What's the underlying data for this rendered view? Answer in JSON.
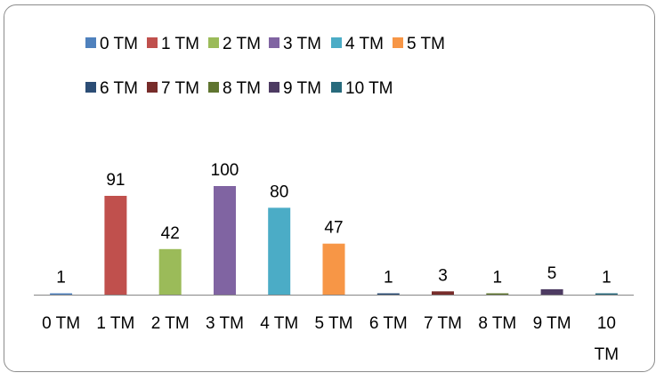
{
  "chart_data": {
    "type": "bar",
    "title": "",
    "xlabel": "",
    "ylabel": "",
    "ylim": [
      0,
      100
    ],
    "grid": false,
    "legend_position": "top",
    "categories": [
      "0 TM",
      "1 TM",
      "2 TM",
      "3 TM",
      "4 TM",
      "5 TM",
      "6 TM",
      "7 TM",
      "8 TM",
      "9 TM",
      "10 TM"
    ],
    "tick_labels": [
      [
        "0 TM"
      ],
      [
        "1 TM"
      ],
      [
        "2 TM"
      ],
      [
        "3 TM"
      ],
      [
        "4 TM"
      ],
      [
        "5 TM"
      ],
      [
        "6 TM"
      ],
      [
        "7 TM"
      ],
      [
        "8 TM"
      ],
      [
        "9 TM"
      ],
      [
        "10",
        "TM"
      ]
    ],
    "series": [
      {
        "name": "0 TM",
        "values": [
          1,
          null,
          null,
          null,
          null,
          null,
          null,
          null,
          null,
          null,
          null
        ],
        "color": "#4F81BD"
      },
      {
        "name": "1 TM",
        "values": [
          null,
          91,
          null,
          null,
          null,
          null,
          null,
          null,
          null,
          null,
          null
        ],
        "color": "#C0504D"
      },
      {
        "name": "2 TM",
        "values": [
          null,
          null,
          42,
          null,
          null,
          null,
          null,
          null,
          null,
          null,
          null
        ],
        "color": "#9BBB59"
      },
      {
        "name": "3 TM",
        "values": [
          null,
          null,
          null,
          100,
          null,
          null,
          null,
          null,
          null,
          null,
          null
        ],
        "color": "#8064A2"
      },
      {
        "name": "4 TM",
        "values": [
          null,
          null,
          null,
          null,
          80,
          null,
          null,
          null,
          null,
          null,
          null
        ],
        "color": "#4BACC6"
      },
      {
        "name": "5 TM",
        "values": [
          null,
          null,
          null,
          null,
          null,
          47,
          null,
          null,
          null,
          null,
          null
        ],
        "color": "#F79646"
      },
      {
        "name": "6 TM",
        "values": [
          null,
          null,
          null,
          null,
          null,
          null,
          1,
          null,
          null,
          null,
          null
        ],
        "color": "#2C4D75"
      },
      {
        "name": "7 TM",
        "values": [
          null,
          null,
          null,
          null,
          null,
          null,
          null,
          3,
          null,
          null,
          null
        ],
        "color": "#772C2A"
      },
      {
        "name": "8 TM",
        "values": [
          null,
          null,
          null,
          null,
          null,
          null,
          null,
          null,
          1,
          null,
          null
        ],
        "color": "#5F7530"
      },
      {
        "name": "9 TM",
        "values": [
          null,
          null,
          null,
          null,
          null,
          null,
          null,
          null,
          null,
          5,
          null
        ],
        "color": "#4D3B62"
      },
      {
        "name": "10 TM",
        "values": [
          null,
          null,
          null,
          null,
          null,
          null,
          null,
          null,
          null,
          null,
          1
        ],
        "color": "#276A7C"
      }
    ],
    "data_labels": [
      "1",
      "91",
      "42",
      "100",
      "80",
      "47",
      "1",
      "3",
      "1",
      "5",
      "1"
    ]
  }
}
